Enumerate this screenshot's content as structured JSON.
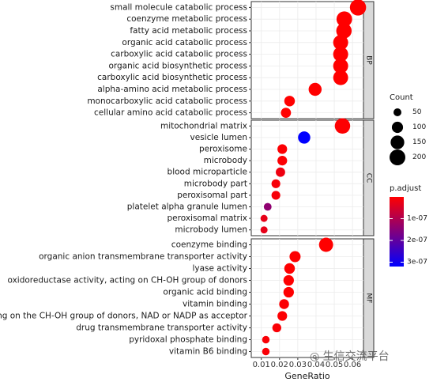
{
  "chart_data": {
    "type": "scatter",
    "xlabel": "GeneRatio",
    "x_ticks": [
      0.01,
      0.02,
      0.03,
      0.04,
      0.05,
      0.06
    ],
    "x_tick_labels": [
      "0.01",
      "0.02",
      "0.03",
      "0.04",
      "0.05",
      "0.06"
    ],
    "xlim": [
      0.0045,
      0.066
    ],
    "legend_position": "right",
    "size_legend": {
      "title": "Count",
      "breaks": [
        50,
        100,
        150,
        200
      ],
      "labels": [
        "50",
        "100",
        "150",
        "200"
      ]
    },
    "color_legend": {
      "title": "p.adjust",
      "low_color": "#ff0000",
      "high_color": "#0000ff",
      "range": [
        0,
        3.2e-07
      ],
      "breaks": [
        1e-07,
        2e-07,
        3e-07
      ],
      "labels": [
        "1e-07",
        "2e-07",
        "3e-07"
      ]
    },
    "panels": [
      {
        "name": "BP",
        "terms": [
          {
            "label": "small molecule catabolic process",
            "x": 0.063,
            "count": 210,
            "p": 1e-12
          },
          {
            "label": "coenzyme metabolic process",
            "x": 0.0555,
            "count": 195,
            "p": 1e-12
          },
          {
            "label": "fatty acid metabolic process",
            "x": 0.0553,
            "count": 190,
            "p": 1e-12
          },
          {
            "label": "organic acid catabolic process",
            "x": 0.0535,
            "count": 180,
            "p": 1e-12
          },
          {
            "label": "carboxylic acid catabolic process",
            "x": 0.0535,
            "count": 180,
            "p": 1e-12
          },
          {
            "label": "organic acid biosynthetic process",
            "x": 0.0535,
            "count": 180,
            "p": 1e-12
          },
          {
            "label": "carboxylic acid biosynthetic process",
            "x": 0.0535,
            "count": 178,
            "p": 1e-12
          },
          {
            "label": "alpha-amino acid metabolic process",
            "x": 0.0395,
            "count": 135,
            "p": 1e-12
          },
          {
            "label": "monocarboxylic acid catabolic process",
            "x": 0.0255,
            "count": 90,
            "p": 1e-12
          },
          {
            "label": "cellular amino acid catabolic process",
            "x": 0.0235,
            "count": 82,
            "p": 1e-12
          }
        ]
      },
      {
        "name": "CC",
        "terms": [
          {
            "label": "mitochondrial matrix",
            "x": 0.0545,
            "count": 190,
            "p": 3e-09
          },
          {
            "label": "vesicle lumen",
            "x": 0.0335,
            "count": 120,
            "p": 3.2e-07
          },
          {
            "label": "peroxisome",
            "x": 0.0215,
            "count": 75,
            "p": 4e-09
          },
          {
            "label": "microbody",
            "x": 0.0215,
            "count": 75,
            "p": 4e-09
          },
          {
            "label": "blood microparticle",
            "x": 0.0205,
            "count": 70,
            "p": 2e-08
          },
          {
            "label": "microbody part",
            "x": 0.018,
            "count": 62,
            "p": 1e-08
          },
          {
            "label": "peroxisomal part",
            "x": 0.018,
            "count": 62,
            "p": 1e-08
          },
          {
            "label": "platelet alpha granule lumen",
            "x": 0.0135,
            "count": 48,
            "p": 1.4e-07
          },
          {
            "label": "peroxisomal matrix",
            "x": 0.0115,
            "count": 40,
            "p": 3e-08
          },
          {
            "label": "microbody lumen",
            "x": 0.0115,
            "count": 40,
            "p": 3e-08
          }
        ]
      },
      {
        "name": "MF",
        "terms": [
          {
            "label": "coenzyme binding",
            "x": 0.0455,
            "count": 160,
            "p": 1e-12
          },
          {
            "label": "organic anion transmembrane transporter activity",
            "x": 0.0285,
            "count": 98,
            "p": 2e-09
          },
          {
            "label": "lyase activity",
            "x": 0.0255,
            "count": 90,
            "p": 1e-09
          },
          {
            "label": "oxidoreductase activity, acting on CH-OH group of donors",
            "x": 0.025,
            "count": 88,
            "p": 1e-09
          },
          {
            "label": "organic acid binding",
            "x": 0.025,
            "count": 88,
            "p": 1e-09
          },
          {
            "label": "vitamin binding",
            "x": 0.0225,
            "count": 78,
            "p": 5e-09
          },
          {
            "label": "oxidoreductase activity, acting on the CH-OH group of donors, NAD or NADP as acceptor",
            "x": 0.0215,
            "count": 75,
            "p": 3e-09
          },
          {
            "label": "drug transmembrane transporter activity",
            "x": 0.0185,
            "count": 64,
            "p": 6e-09
          },
          {
            "label": "pyridoxal phosphate binding",
            "x": 0.0125,
            "count": 45,
            "p": 8e-09
          },
          {
            "label": "vitamin B6 binding",
            "x": 0.0125,
            "count": 45,
            "p": 8e-09
          }
        ]
      }
    ]
  },
  "watermark": "生信交流平台"
}
